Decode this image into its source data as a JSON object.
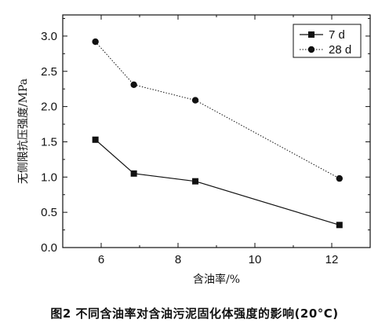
{
  "chart_data": {
    "type": "line",
    "title": "",
    "xlabel": "含油率/%",
    "ylabel": "无侧限抗压强度/MPa",
    "xlim": [
      5,
      13
    ],
    "ylim": [
      0,
      3.3
    ],
    "xticks": [
      6,
      8,
      10,
      12
    ],
    "yticks": [
      0.0,
      0.5,
      1.0,
      1.5,
      2.0,
      2.5,
      3.0
    ],
    "xtick_labels": [
      "6",
      "8",
      "10",
      "12"
    ],
    "ytick_labels": [
      "0.0",
      "0.5",
      "1.0",
      "1.5",
      "2.0",
      "2.5",
      "3.0"
    ],
    "grid": false,
    "legend_position": "top-right",
    "series": [
      {
        "name": "7 d",
        "marker": "square",
        "line_style": "solid",
        "x": [
          5.85,
          6.85,
          8.45,
          12.2
        ],
        "y": [
          1.53,
          1.05,
          0.94,
          0.32
        ]
      },
      {
        "name": "28 d",
        "marker": "circle",
        "line_style": "dotted",
        "x": [
          5.85,
          6.85,
          8.45,
          12.2
        ],
        "y": [
          2.92,
          2.31,
          2.09,
          0.98
        ]
      }
    ]
  },
  "caption": "图2 不同含油率对含油污泥固化体强度的影响(20°C)"
}
